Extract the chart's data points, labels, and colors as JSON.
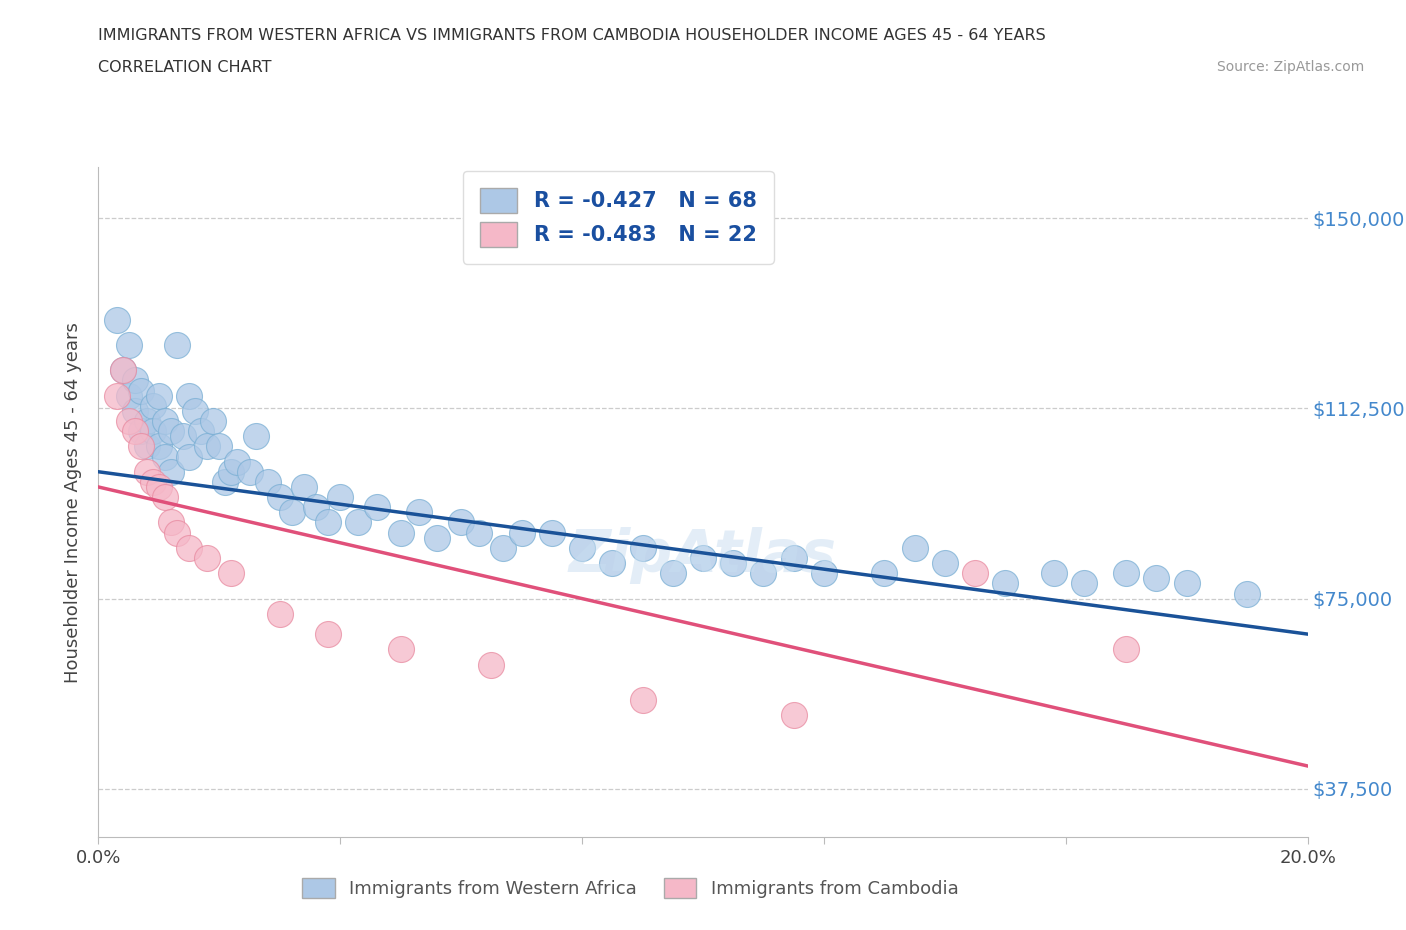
{
  "title_line1": "IMMIGRANTS FROM WESTERN AFRICA VS IMMIGRANTS FROM CAMBODIA HOUSEHOLDER INCOME AGES 45 - 64 YEARS",
  "title_line2": "CORRELATION CHART",
  "source_text": "Source: ZipAtlas.com",
  "ylabel": "Householder Income Ages 45 - 64 years",
  "xlim": [
    0.0,
    0.2
  ],
  "ylim": [
    28000,
    160000
  ],
  "yticks": [
    37500,
    75000,
    112500,
    150000
  ],
  "ytick_labels": [
    "$37,500",
    "$75,000",
    "$112,500",
    "$150,000"
  ],
  "xticks": [
    0.0,
    0.04,
    0.08,
    0.12,
    0.16,
    0.2
  ],
  "xtick_labels": [
    "0.0%",
    "",
    "",
    "",
    "",
    "20.0%"
  ],
  "western_africa_R": -0.427,
  "western_africa_N": 68,
  "cambodia_R": -0.483,
  "cambodia_N": 22,
  "blue_color": "#adc8e6",
  "blue_edge_color": "#7aafd4",
  "blue_line_color": "#1a5298",
  "pink_color": "#f5b8c8",
  "pink_edge_color": "#e88aa0",
  "pink_line_color": "#e0507a",
  "legend_label_1": "Immigrants from Western Africa",
  "legend_label_2": "Immigrants from Cambodia",
  "background_color": "#ffffff",
  "wa_line_y0": 100000,
  "wa_line_y1": 68000,
  "cam_line_y0": 97000,
  "cam_line_y1": 42000,
  "western_africa_x": [
    0.003,
    0.004,
    0.005,
    0.005,
    0.006,
    0.006,
    0.007,
    0.007,
    0.008,
    0.008,
    0.009,
    0.009,
    0.01,
    0.01,
    0.011,
    0.011,
    0.012,
    0.012,
    0.013,
    0.014,
    0.015,
    0.015,
    0.016,
    0.017,
    0.018,
    0.019,
    0.02,
    0.021,
    0.022,
    0.023,
    0.025,
    0.026,
    0.028,
    0.03,
    0.032,
    0.034,
    0.036,
    0.038,
    0.04,
    0.043,
    0.046,
    0.05,
    0.053,
    0.056,
    0.06,
    0.063,
    0.067,
    0.07,
    0.075,
    0.08,
    0.085,
    0.09,
    0.095,
    0.1,
    0.105,
    0.11,
    0.115,
    0.12,
    0.13,
    0.135,
    0.14,
    0.15,
    0.158,
    0.163,
    0.17,
    0.175,
    0.18,
    0.19
  ],
  "western_africa_y": [
    130000,
    120000,
    125000,
    115000,
    118000,
    112000,
    108000,
    116000,
    110000,
    105000,
    113000,
    108000,
    115000,
    105000,
    110000,
    103000,
    108000,
    100000,
    125000,
    107000,
    115000,
    103000,
    112000,
    108000,
    105000,
    110000,
    105000,
    98000,
    100000,
    102000,
    100000,
    107000,
    98000,
    95000,
    92000,
    97000,
    93000,
    90000,
    95000,
    90000,
    93000,
    88000,
    92000,
    87000,
    90000,
    88000,
    85000,
    88000,
    88000,
    85000,
    82000,
    85000,
    80000,
    83000,
    82000,
    80000,
    83000,
    80000,
    80000,
    85000,
    82000,
    78000,
    80000,
    78000,
    80000,
    79000,
    78000,
    76000
  ],
  "cambodia_x": [
    0.003,
    0.004,
    0.005,
    0.006,
    0.007,
    0.008,
    0.009,
    0.01,
    0.011,
    0.012,
    0.013,
    0.015,
    0.018,
    0.022,
    0.03,
    0.038,
    0.05,
    0.065,
    0.09,
    0.115,
    0.145,
    0.17
  ],
  "cambodia_y": [
    115000,
    120000,
    110000,
    108000,
    105000,
    100000,
    98000,
    97000,
    95000,
    90000,
    88000,
    85000,
    83000,
    80000,
    72000,
    68000,
    65000,
    62000,
    55000,
    52000,
    80000,
    65000
  ]
}
